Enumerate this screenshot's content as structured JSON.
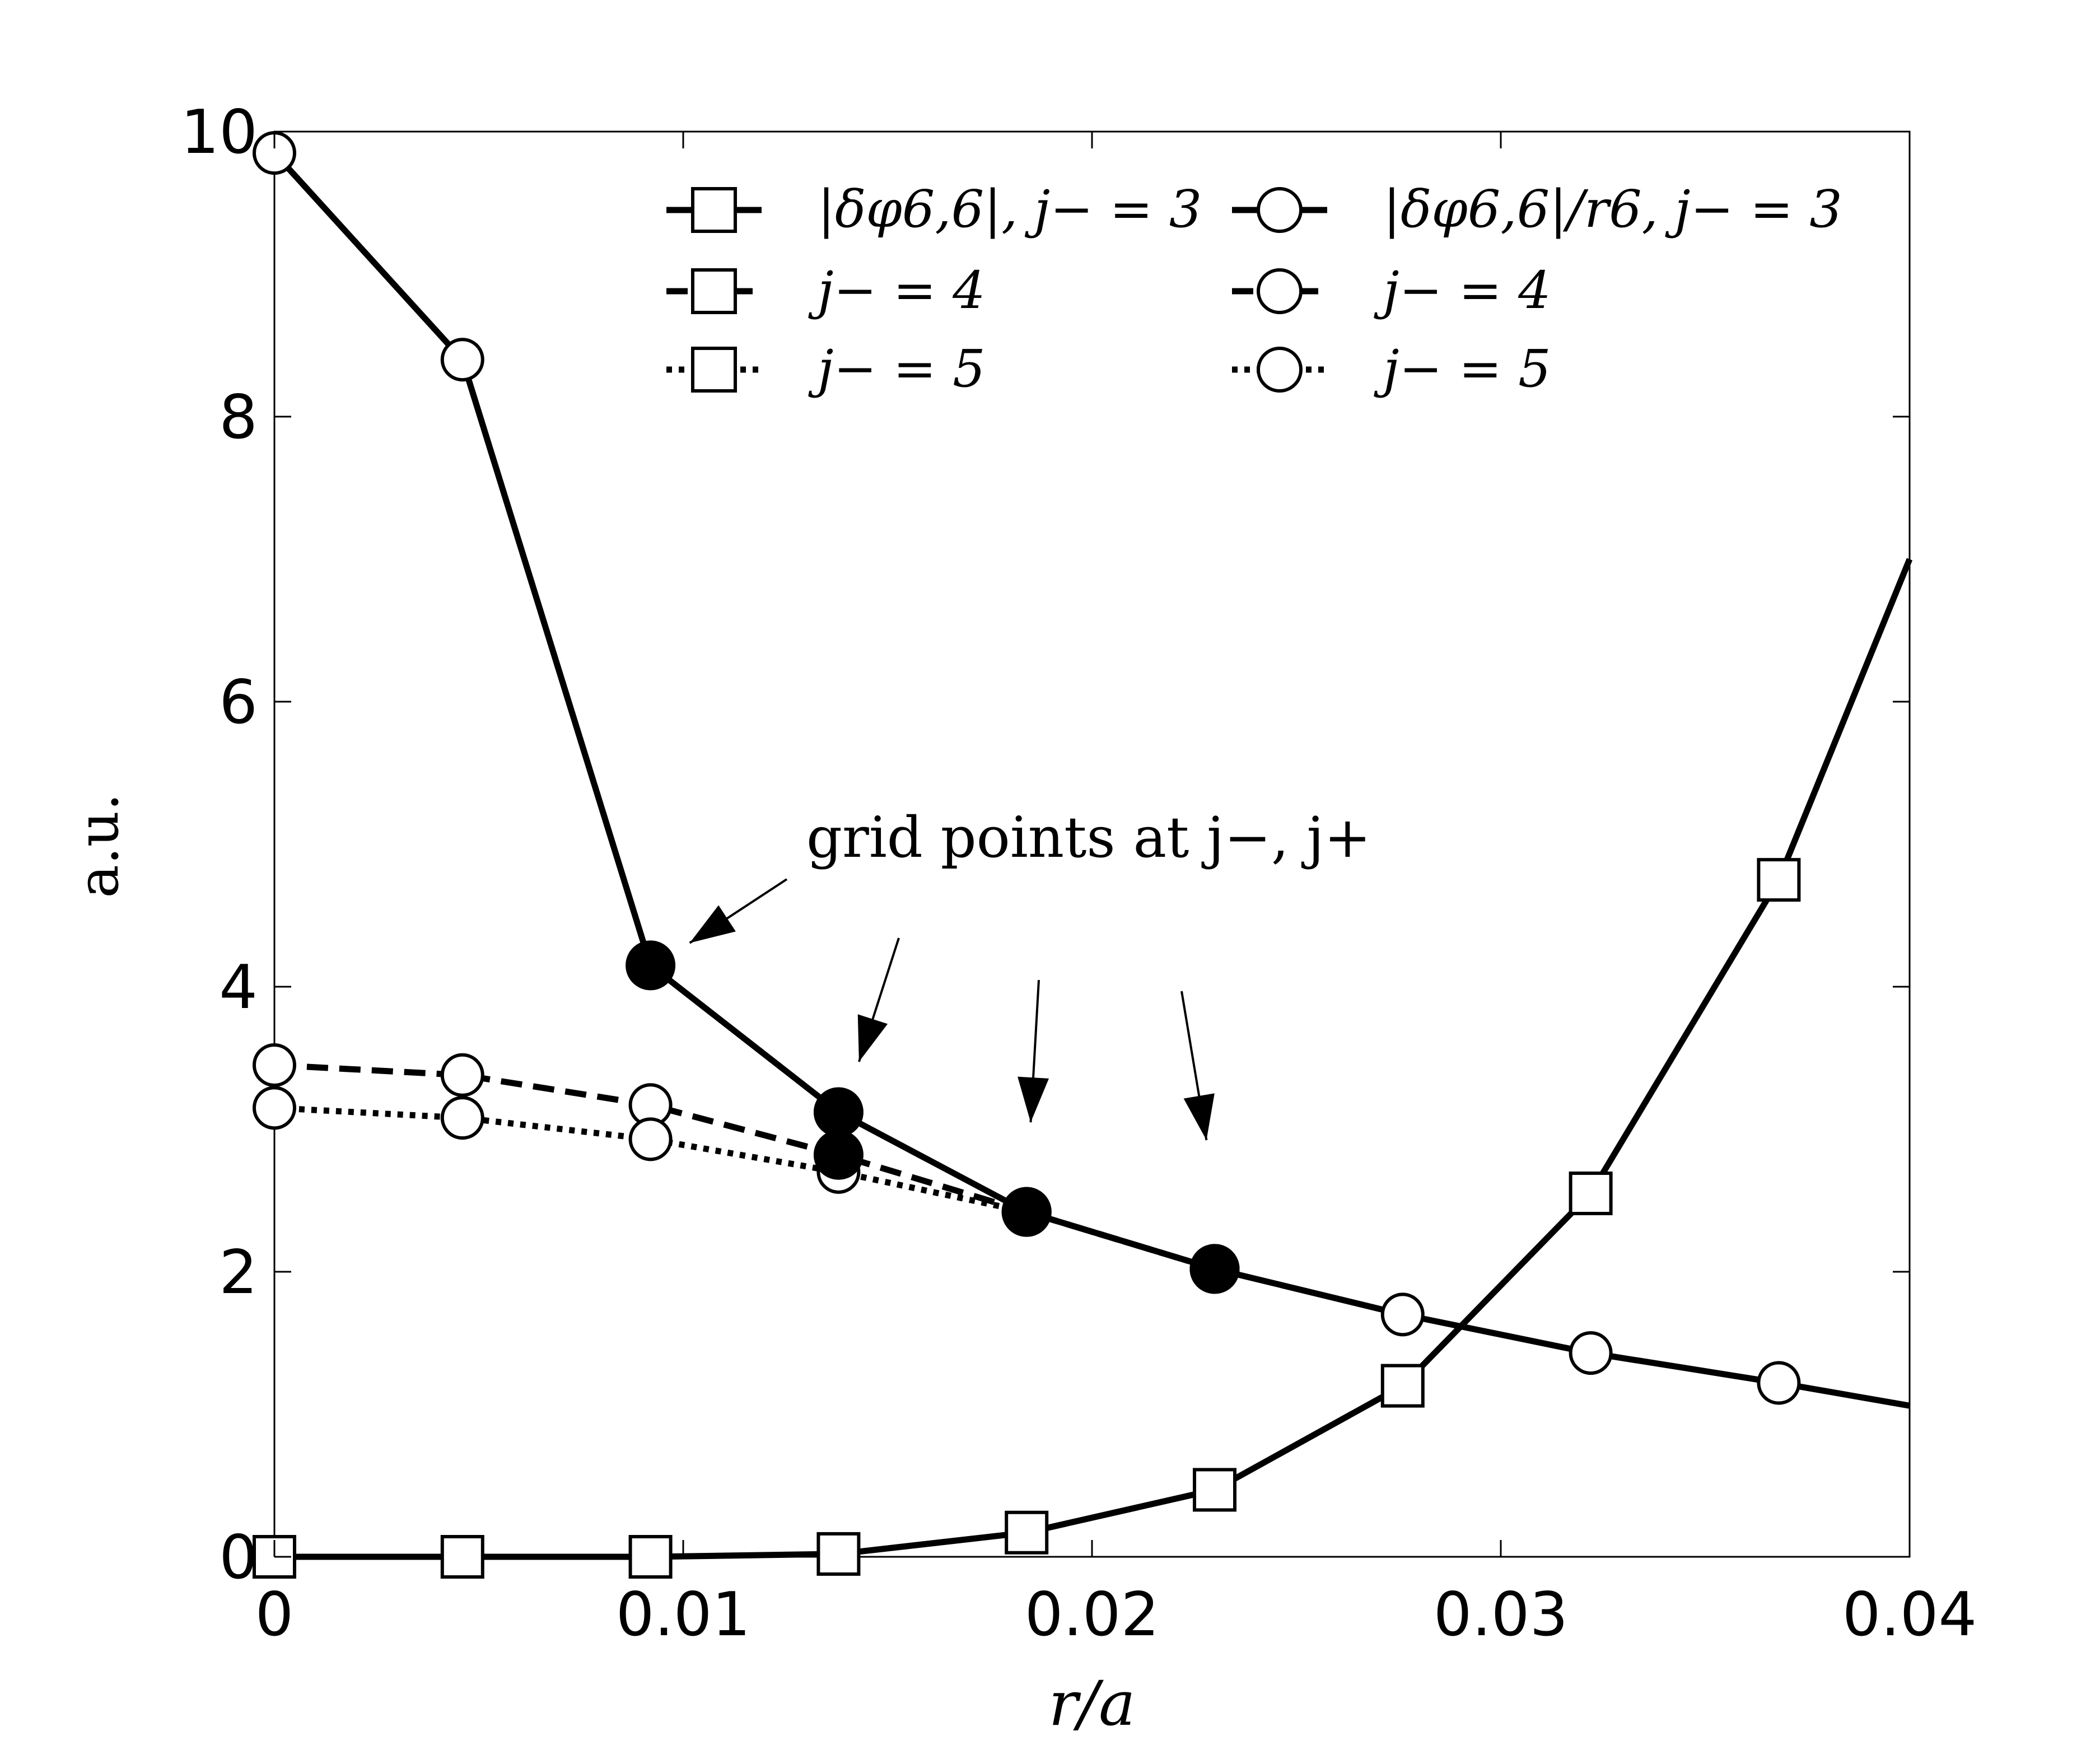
{
  "chart_data": {
    "type": "line",
    "xlabel": "r/a",
    "ylabel": "a.u.",
    "xlim": [
      0,
      0.04
    ],
    "ylim": [
      0,
      10
    ],
    "xticks": [
      0,
      0.01,
      0.02,
      0.03,
      0.04
    ],
    "xtick_labels": [
      "0",
      "0.01",
      "0.02",
      "0.03",
      "0.04"
    ],
    "yticks": [
      0,
      2,
      4,
      6,
      8,
      10
    ],
    "ytick_labels": [
      "0",
      "2",
      "4",
      "6",
      "8",
      "10"
    ],
    "grid": false,
    "legend_placement": "top",
    "series": [
      {
        "name": "|δφ6,6|, j− = 3",
        "style": "solid",
        "marker": "square",
        "x": [
          0,
          0.0046,
          0.0092,
          0.0138,
          0.0184,
          0.023,
          0.0276,
          0.0322,
          0.0368,
          0.04
        ],
        "y": [
          0,
          0,
          0,
          0.02,
          0.17,
          0.47,
          1.2,
          2.55,
          4.75,
          7.0
        ],
        "marked_points": [
          0,
          1,
          2,
          3,
          4,
          5,
          6,
          7,
          8
        ]
      },
      {
        "name": "j− = 4",
        "style": "dashed",
        "marker": "square",
        "x": [],
        "y": [],
        "marked_points": []
      },
      {
        "name": "j− = 5",
        "style": "dotted",
        "marker": "square",
        "x": [],
        "y": [],
        "marked_points": []
      },
      {
        "name": "|δφ6,6|/r6, j− = 3",
        "style": "solid",
        "marker": "circle",
        "x": [
          0,
          0.0046,
          0.0092,
          0.0138,
          0.0184,
          0.023,
          0.0276,
          0.0322,
          0.0368,
          0.04
        ],
        "y": [
          9.85,
          8.4,
          4.15,
          3.12,
          2.42,
          2.02,
          1.7,
          1.43,
          1.22,
          1.06
        ],
        "marked_points": [
          0,
          1,
          6,
          7,
          8
        ],
        "grid_points": [
          2,
          3,
          4,
          5
        ]
      },
      {
        "name": "j− = 4",
        "style": "dashed",
        "marker": "circle",
        "x": [
          0,
          0.0046,
          0.0092,
          0.0138,
          0.0184,
          0.023
        ],
        "y": [
          3.45,
          3.38,
          3.17,
          2.82,
          2.42,
          2.02
        ],
        "marked_points": [
          0,
          1,
          2
        ],
        "grid_points": [
          3,
          4,
          5
        ]
      },
      {
        "name": "j− = 5",
        "style": "dotted",
        "marker": "circle",
        "x": [
          0,
          0.0046,
          0.0092,
          0.0138,
          0.0184,
          0.023
        ],
        "y": [
          3.15,
          3.08,
          2.93,
          2.7,
          2.42,
          2.02
        ],
        "marked_points": [
          0,
          1,
          2,
          3
        ],
        "grid_points": [
          4,
          5
        ]
      }
    ],
    "annotations": [
      {
        "text": "grid points at j−, j+"
      }
    ]
  }
}
